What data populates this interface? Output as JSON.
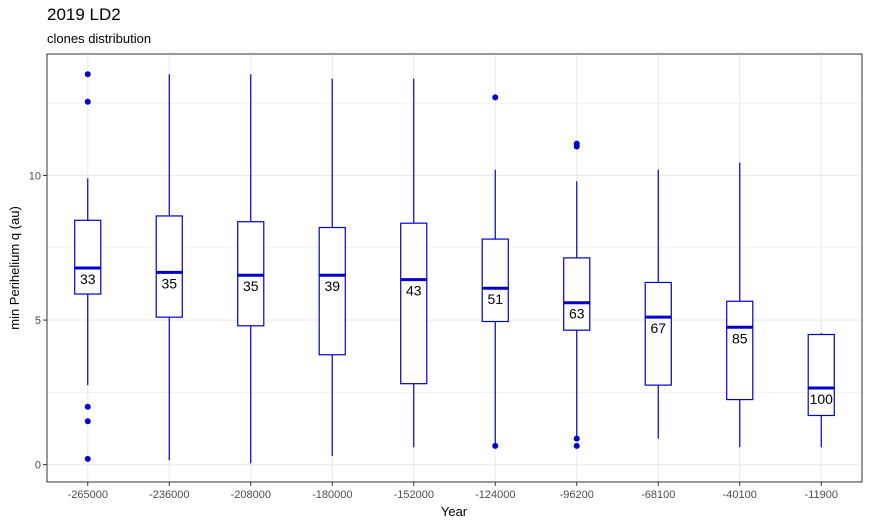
{
  "chart_data": {
    "type": "boxplot",
    "title": "2019 LD2",
    "subtitle": "clones distribution",
    "xlabel": "Year",
    "ylabel": "min Perihelium q (au)",
    "ylim": [
      -0.6,
      14.2
    ],
    "yticks": [
      0,
      5,
      10
    ],
    "ytick_labels": [
      "0",
      "5",
      "10"
    ],
    "grid": true,
    "colors": {
      "box": "#0000cc",
      "grid": "#ebebeb",
      "panel_border": "#333333"
    },
    "categories": [
      "-265000",
      "-236000",
      "-208000",
      "-180000",
      "-152000",
      "-124000",
      "-96200",
      "-68100",
      "-40100",
      "-11900"
    ],
    "boxes": [
      {
        "x": "-265000",
        "min": 2.75,
        "q1": 5.9,
        "median": 6.8,
        "q3": 8.45,
        "max": 9.9,
        "outliers": [
          13.5,
          12.55,
          2.0,
          1.5,
          0.2
        ],
        "count": "33"
      },
      {
        "x": "-236000",
        "min": 0.15,
        "q1": 5.1,
        "median": 6.65,
        "q3": 8.6,
        "max": 13.5,
        "outliers": [],
        "count": "35"
      },
      {
        "x": "-208000",
        "min": 0.05,
        "q1": 4.8,
        "median": 6.55,
        "q3": 8.4,
        "max": 13.5,
        "outliers": [],
        "count": "35"
      },
      {
        "x": "-180000",
        "min": 0.3,
        "q1": 3.8,
        "median": 6.55,
        "q3": 8.2,
        "max": 13.35,
        "outliers": [],
        "count": "39"
      },
      {
        "x": "-152000",
        "min": 0.6,
        "q1": 2.8,
        "median": 6.4,
        "q3": 8.35,
        "max": 13.35,
        "outliers": [],
        "count": "43"
      },
      {
        "x": "-124000",
        "min": 0.65,
        "q1": 4.95,
        "median": 6.1,
        "q3": 7.8,
        "max": 10.2,
        "outliers": [
          12.7,
          0.65
        ],
        "count": "51"
      },
      {
        "x": "-96200",
        "min": 0.9,
        "q1": 4.65,
        "median": 5.6,
        "q3": 7.15,
        "max": 9.8,
        "outliers": [
          11.1,
          11.0,
          0.9,
          0.65
        ],
        "count": "63"
      },
      {
        "x": "-68100",
        "min": 0.9,
        "q1": 2.75,
        "median": 5.1,
        "q3": 6.3,
        "max": 10.2,
        "outliers": [],
        "count": "67"
      },
      {
        "x": "-40100",
        "min": 0.6,
        "q1": 2.25,
        "median": 4.75,
        "q3": 5.65,
        "max": 10.45,
        "outliers": [],
        "count": "85"
      },
      {
        "x": "-11900",
        "min": 0.6,
        "q1": 1.7,
        "median": 2.65,
        "q3": 4.5,
        "max": 4.55,
        "outliers": [],
        "count": "100"
      }
    ]
  }
}
